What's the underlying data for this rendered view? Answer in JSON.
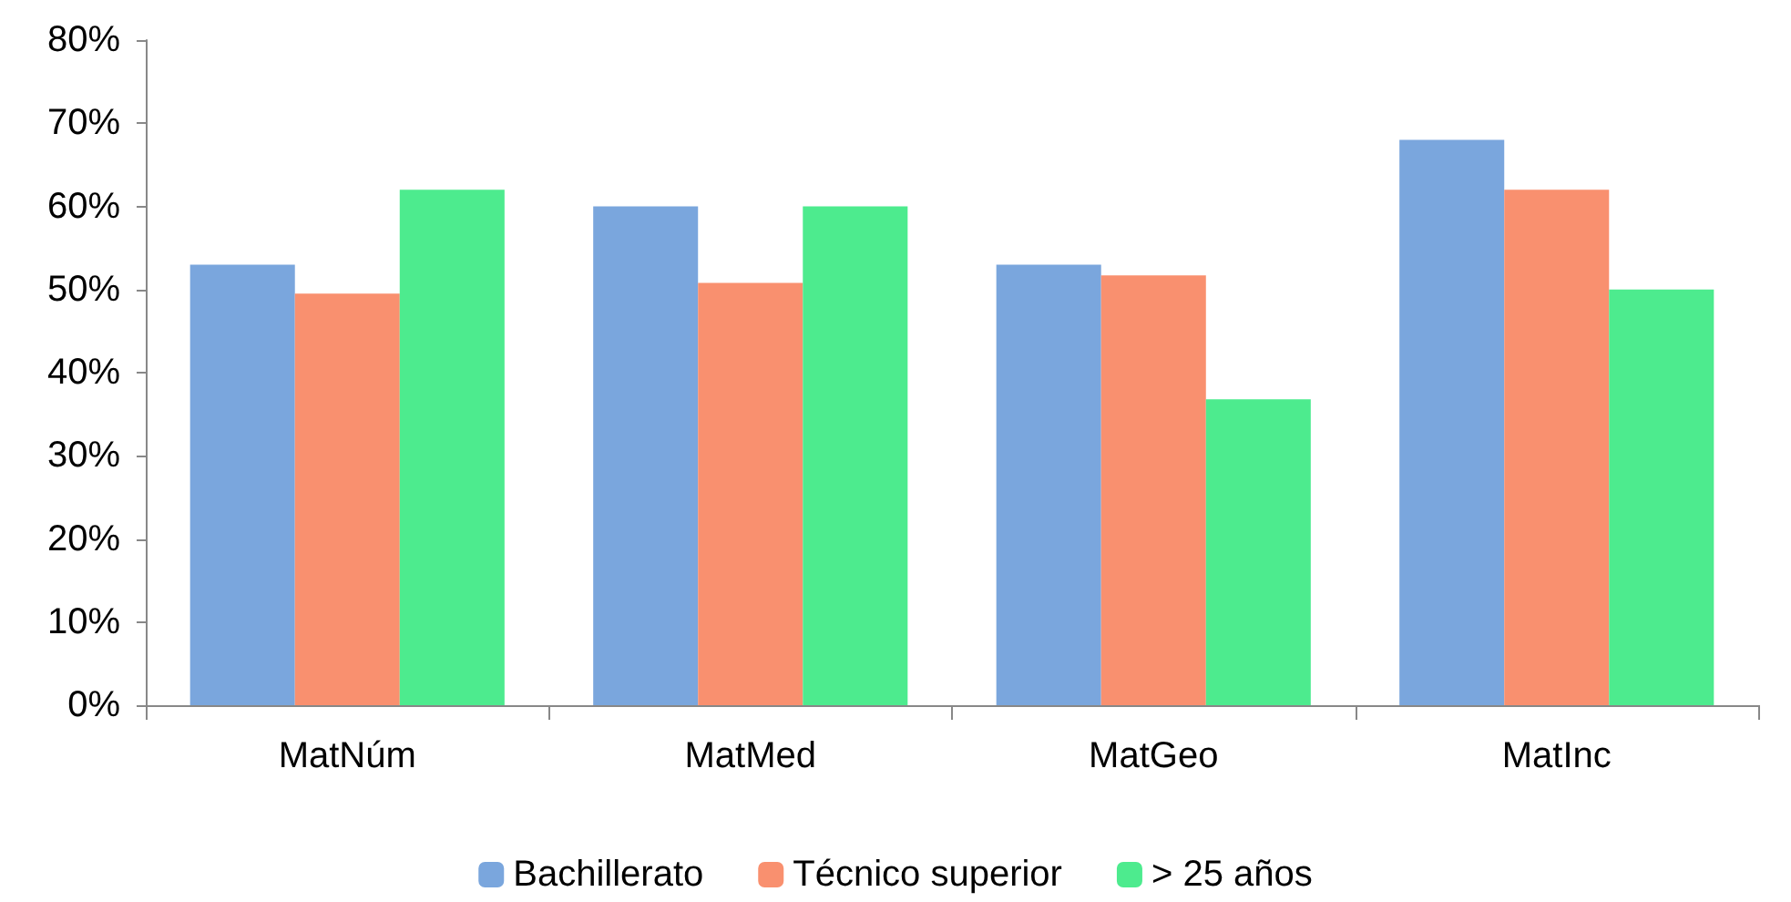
{
  "chart_data": {
    "type": "bar",
    "categories": [
      "MatNúm",
      "MatMed",
      "MatGeo",
      "MatInc"
    ],
    "series": [
      {
        "name": "Bachillerato",
        "color": "#7aa6dd",
        "values": [
          53,
          60,
          53,
          68
        ]
      },
      {
        "name": "Técnico superior",
        "color": "#f9906f",
        "values": [
          49.5,
          50.8,
          51.7,
          62
        ]
      },
      {
        "name": "> 25 años",
        "color": "#4deb8e",
        "values": [
          62,
          60,
          36.8,
          50
        ]
      }
    ],
    "ylim": [
      0,
      80
    ],
    "yticks": [
      {
        "value": 0,
        "label": "0%"
      },
      {
        "value": 10,
        "label": "10%"
      },
      {
        "value": 20,
        "label": "20%"
      },
      {
        "value": 30,
        "label": "30%"
      },
      {
        "value": 40,
        "label": "40%"
      },
      {
        "value": 50,
        "label": "50%"
      },
      {
        "value": 60,
        "label": "60%"
      },
      {
        "value": 70,
        "label": "70%"
      },
      {
        "value": 80,
        "label": "80%"
      }
    ],
    "grid": false,
    "legend": "bottom"
  }
}
